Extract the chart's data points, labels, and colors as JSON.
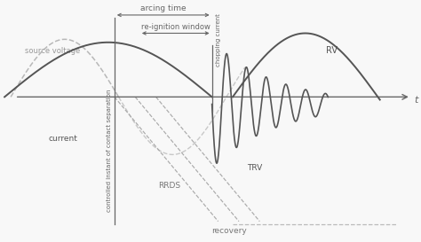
{
  "bg_color": "#f8f8f8",
  "axis_color": "#666666",
  "line_dark": "#555555",
  "line_grey": "#aaaaaa",
  "line_dashed_grey": "#bbbbbb",
  "xlim": [
    0,
    10
  ],
  "ylim": [
    -2.0,
    1.8
  ],
  "zero_y": 0.35,
  "source_voltage_label": "source voltage",
  "current_label": "current",
  "arcing_time_label": "arcing time",
  "re_ignition_label": "re-ignition window",
  "chopping_label": "chopping current",
  "rrds_label": "RRDS",
  "recovery_label": "recovery",
  "trv_label": "TRV",
  "rv_label": "RV",
  "t_label": "t",
  "contact_sep_label": "controlled instant of contact separation",
  "x_contact": 2.7,
  "x_reig_start": 3.3,
  "x_chop": 5.05
}
